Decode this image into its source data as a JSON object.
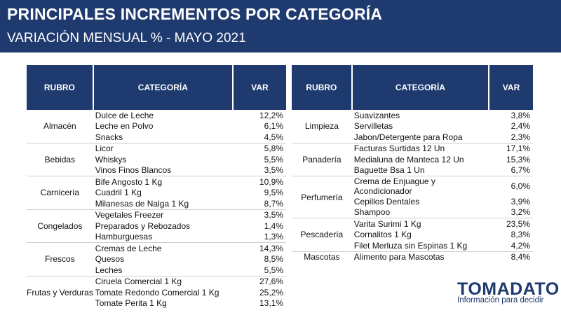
{
  "header": {
    "title": "PRINCIPALES INCREMENTOS POR CATEGORÍA",
    "subtitle": "VARIACIÓN MENSUAL % - MAYO 2021"
  },
  "columns": {
    "rubro": "RUBRO",
    "categoria": "CATEGORÍA",
    "var": "VAR"
  },
  "left_table": [
    {
      "rubro": "Almacén",
      "items": [
        {
          "categoria": "Dulce de Leche",
          "var": "12,2%"
        },
        {
          "categoria": "Leche en Polvo",
          "var": "6,1%"
        },
        {
          "categoria": "Snacks",
          "var": "4,5%"
        }
      ]
    },
    {
      "rubro": "Bebidas",
      "items": [
        {
          "categoria": "Licor",
          "var": "5,8%"
        },
        {
          "categoria": "Whiskys",
          "var": "5,5%"
        },
        {
          "categoria": "Vinos Finos Blancos",
          "var": "3,5%"
        }
      ]
    },
    {
      "rubro": "Carnicería",
      "items": [
        {
          "categoria": "Bife Angosto 1 Kg",
          "var": "10,9%"
        },
        {
          "categoria": "Cuadril 1 Kg",
          "var": "9,5%"
        },
        {
          "categoria": "Milanesas de Nalga 1 Kg",
          "var": "8,7%"
        }
      ]
    },
    {
      "rubro": "Congelados",
      "items": [
        {
          "categoria": "Vegetales Freezer",
          "var": "3,5%"
        },
        {
          "categoria": "Preparados y Rebozados",
          "var": "1,4%"
        },
        {
          "categoria": "Hamburguesas",
          "var": "1,3%"
        }
      ]
    },
    {
      "rubro": "Frescos",
      "items": [
        {
          "categoria": "Cremas de Leche",
          "var": "14,3%"
        },
        {
          "categoria": "Quesos",
          "var": "8,5%"
        },
        {
          "categoria": "Leches",
          "var": "5,5%"
        }
      ]
    },
    {
      "rubro": "Frutas y Verduras",
      "items": [
        {
          "categoria": "Ciruela Comercial 1 Kg",
          "var": "27,6%"
        },
        {
          "categoria": "Tomate Redondo Comercial 1 Kg",
          "var": "25,2%"
        },
        {
          "categoria": "Tomate Perita 1 Kg",
          "var": "13,1%"
        }
      ]
    }
  ],
  "right_table": [
    {
      "rubro": "Limpieza",
      "items": [
        {
          "categoria": "Suavizantes",
          "var": "3,8%"
        },
        {
          "categoria": "Servilletas",
          "var": "2,4%"
        },
        {
          "categoria": "Jabon/Detergente para Ropa",
          "var": "2,3%"
        }
      ]
    },
    {
      "rubro": "Panadería",
      "items": [
        {
          "categoria": "Facturas Surtidas 12 Un",
          "var": "17,1%"
        },
        {
          "categoria": "Medialuna de Manteca 12 Un",
          "var": "15,3%"
        },
        {
          "categoria": "Baguette Bsa 1 Un",
          "var": "6,7%"
        }
      ]
    },
    {
      "rubro": "Perfumería",
      "items": [
        {
          "categoria": "Crema de Enjuague y Acondicionador",
          "var": "6,0%"
        },
        {
          "categoria": "Cepillos Dentales",
          "var": "3,9%"
        },
        {
          "categoria": "Shampoo",
          "var": "3,2%"
        }
      ]
    },
    {
      "rubro": "Pescadería",
      "items": [
        {
          "categoria": "Varita Surimi 1 Kg",
          "var": "23,5%"
        },
        {
          "categoria": "Cornalitos 1 Kg",
          "var": "8,3%"
        },
        {
          "categoria": "Filet Merluza sin Espinas  1 Kg",
          "var": "4,2%"
        }
      ]
    },
    {
      "rubro": "Mascotas",
      "items": [
        {
          "categoria": "Alimento para Mascotas",
          "var": "8,4%"
        }
      ]
    }
  ],
  "logo": {
    "name": "TOMADATO",
    "tagline": "Información para decidir"
  },
  "colors": {
    "header_bg": "#1f3a6e",
    "brand": "#1f3a6e"
  }
}
